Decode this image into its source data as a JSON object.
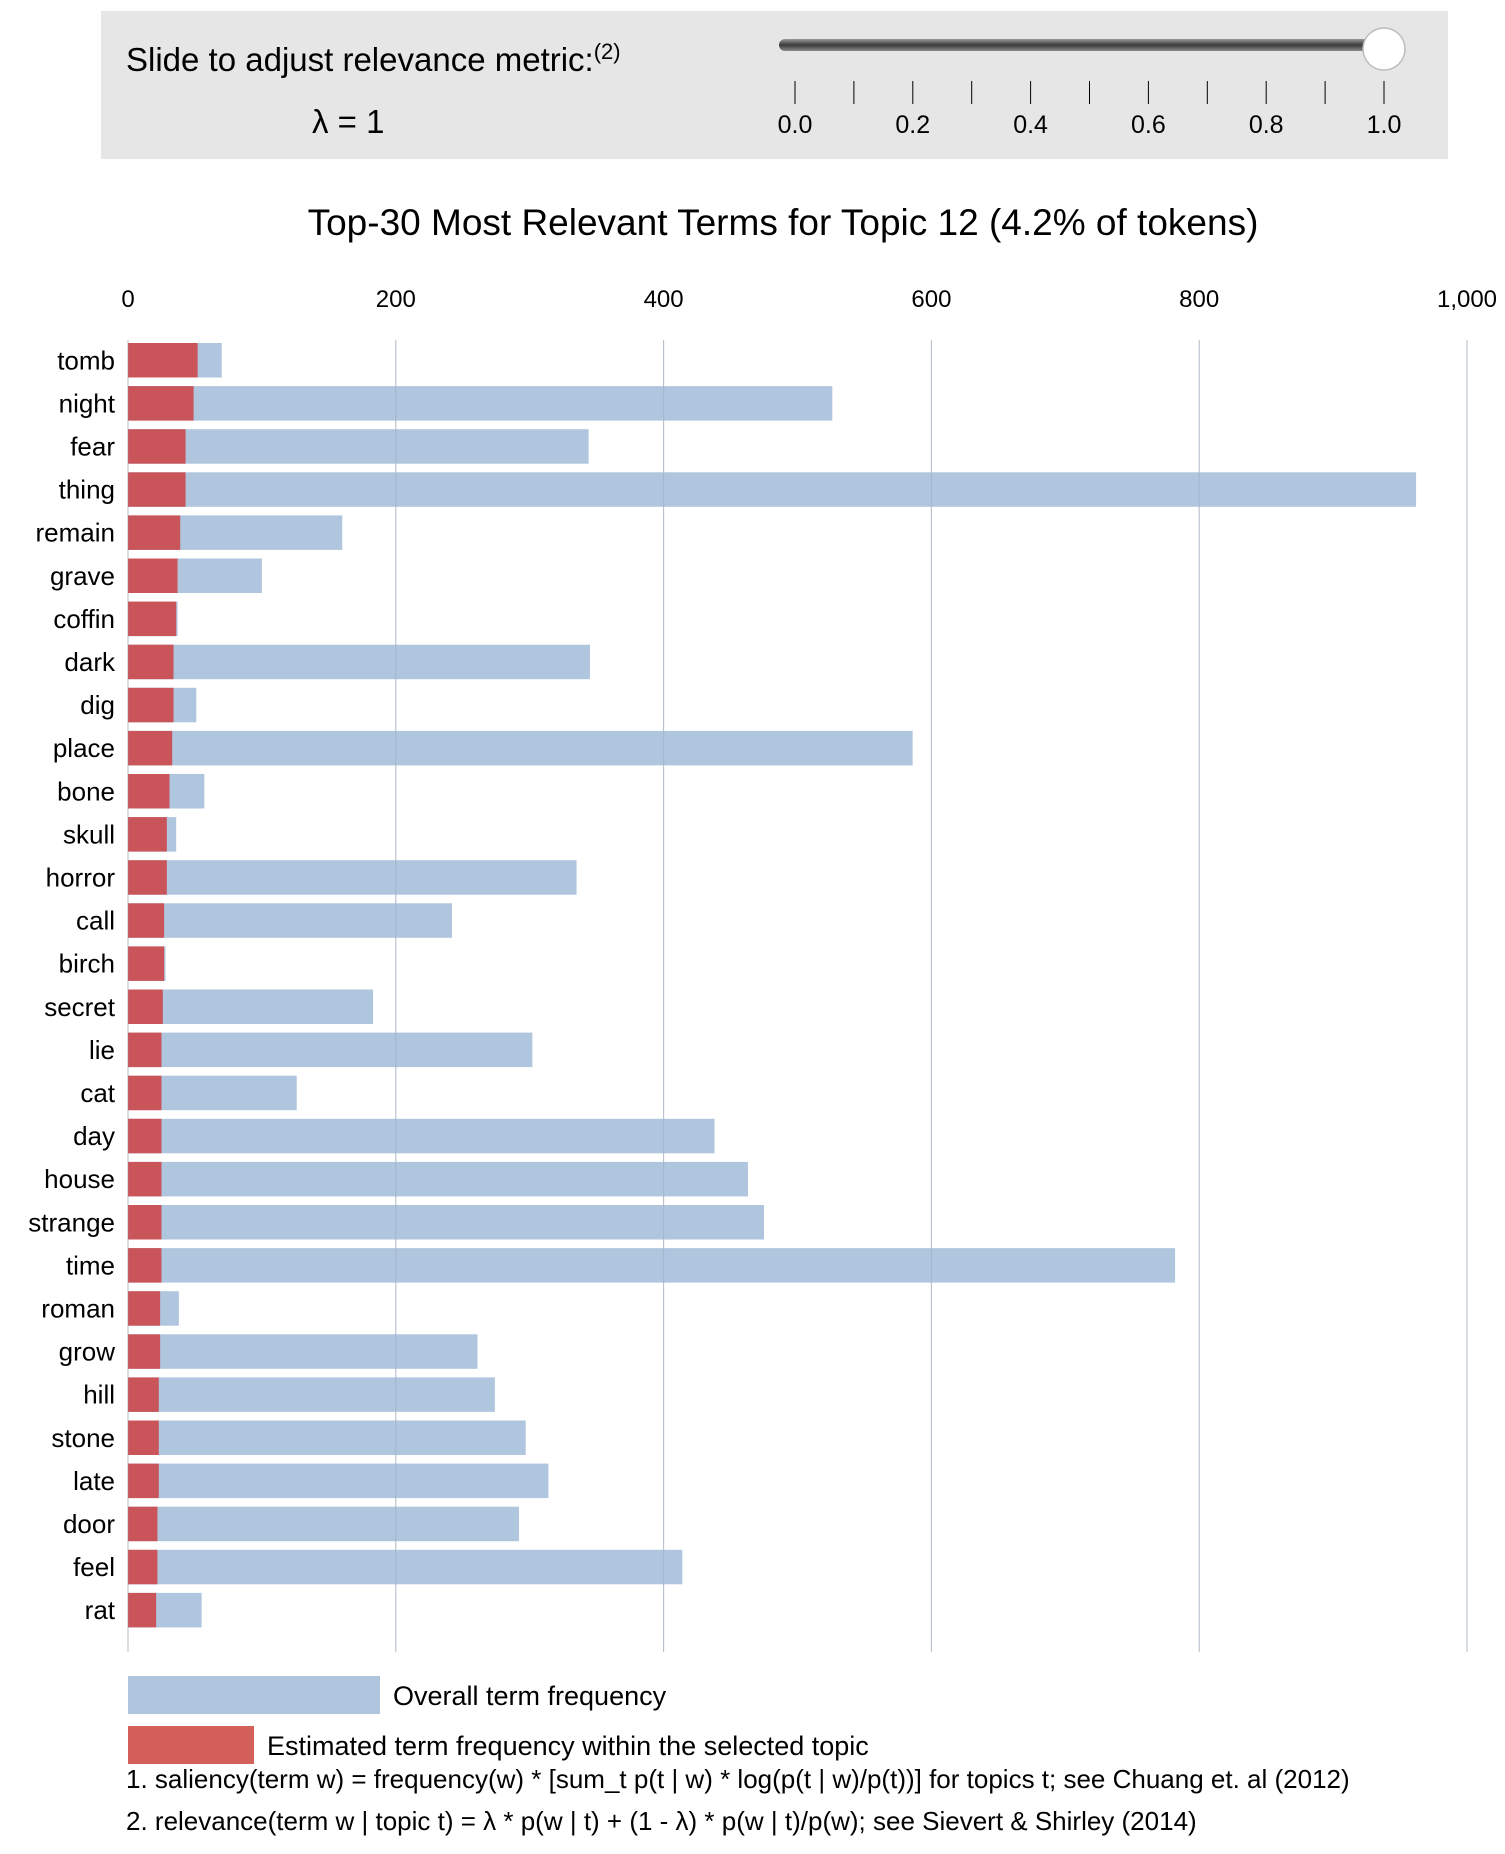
{
  "slider": {
    "title": "Slide to adjust relevance metric:",
    "footnote_ref": "(2)",
    "lambda_label": "λ = 1",
    "value": 1.0,
    "min": 0.0,
    "max": 1.0,
    "tick_labels": [
      "0.0",
      "0.2",
      "0.4",
      "0.6",
      "0.8",
      "1.0"
    ]
  },
  "chart_data": {
    "type": "bar",
    "orientation": "horizontal",
    "title": "Top-30 Most Relevant Terms for Topic 12 (4.2% of tokens)",
    "xlim": [
      0,
      1000
    ],
    "x_tick_labels": [
      "0",
      "200",
      "400",
      "600",
      "800",
      "1,000"
    ],
    "x_ticks": [
      0,
      200,
      400,
      600,
      800,
      1000
    ],
    "grid": true,
    "categories": [
      "tomb",
      "night",
      "fear",
      "thing",
      "remain",
      "grave",
      "coffin",
      "dark",
      "dig",
      "place",
      "bone",
      "skull",
      "horror",
      "call",
      "birch",
      "secret",
      "lie",
      "cat",
      "day",
      "house",
      "strange",
      "time",
      "roman",
      "grow",
      "hill",
      "stone",
      "late",
      "door",
      "feel",
      "rat"
    ],
    "series": [
      {
        "name": "Overall term frequency",
        "color": "#b0c6df",
        "values": [
          70,
          526,
          344,
          962,
          160,
          100,
          37,
          345,
          51,
          586,
          57,
          36,
          335,
          242,
          28,
          183,
          302,
          126,
          438,
          463,
          475,
          782,
          38,
          261,
          274,
          297,
          314,
          292,
          414,
          55
        ]
      },
      {
        "name": "Estimated term frequency within the selected topic",
        "color": "#c9555a",
        "values": [
          52,
          49,
          43,
          43,
          39,
          37,
          36,
          34,
          34,
          33,
          31,
          29,
          29,
          27,
          27,
          26,
          25,
          25,
          25,
          25,
          25,
          25,
          24,
          24,
          23,
          23,
          23,
          22,
          22,
          21
        ]
      }
    ],
    "legend_placement": "bottom-left"
  },
  "footnotes": [
    "1. saliency(term w) = frequency(w) * [sum_t p(t | w) * log(p(t | w)/p(t))] for topics t; see Chuang et. al (2012)",
    "2. relevance(term w | topic t) = λ * p(w | t) + (1 - λ) * p(w | t)/p(w); see Sievert & Shirley (2014)"
  ],
  "colors": {
    "overall_bar": "#b0c6df",
    "topic_bar": "#c9555a",
    "topic_legend": "#d3605b",
    "panel_bg": "#e6e6e6",
    "grid": "#c8cfd9"
  }
}
